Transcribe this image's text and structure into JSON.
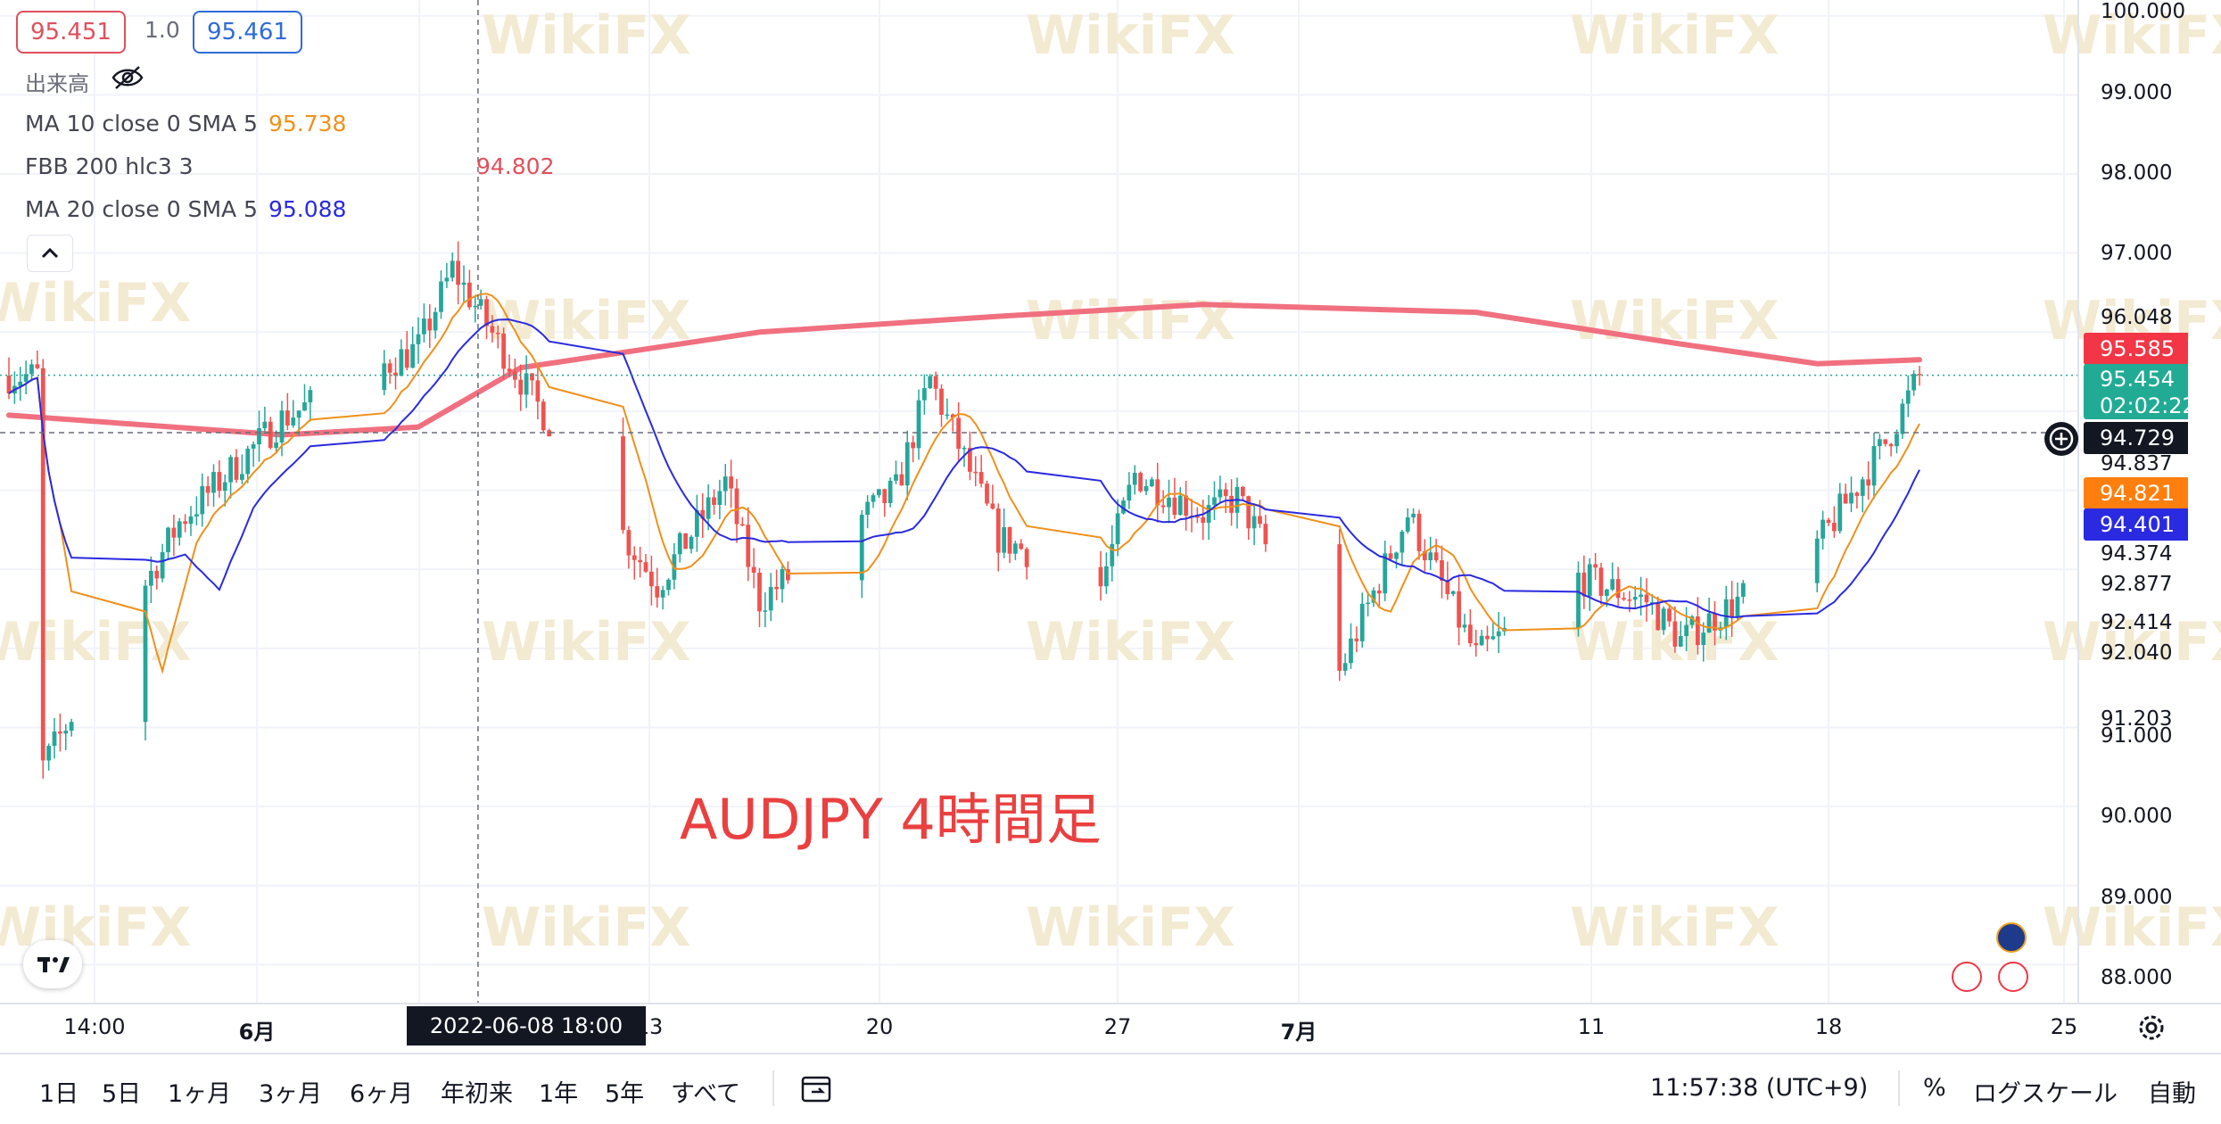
{
  "order_panel": {
    "sell": "95.451",
    "qty": "1.0",
    "buy": "95.461"
  },
  "legend": {
    "volume": "出来高",
    "ma10": {
      "label": "MA 10 close 0 SMA 5",
      "value": "95.738",
      "color": "#f0901a"
    },
    "fbb": {
      "label": "FBB 200 hlc3 3",
      "value": "",
      "color": "#f07080"
    },
    "ma20": {
      "label": "MA 20 close 0 SMA 5",
      "value": "95.088",
      "color": "#2a2ae0"
    }
  },
  "crosshair_value": "94.802",
  "annotation": "AUDJPY 4時間足",
  "y_axis": {
    "ticks": [
      "100.000",
      "99.000",
      "98.000",
      "97.000",
      "96.048",
      "94.837",
      "94.374",
      "92.877",
      "92.414",
      "92.040",
      "91.203",
      "91.000",
      "90.000",
      "89.000",
      "88.000"
    ]
  },
  "price_badges": {
    "fbb": {
      "value": "95.585",
      "color": "#f23645"
    },
    "last": {
      "value": "95.454",
      "countdown": "02:02:22",
      "color": "#22ab94"
    },
    "crosshair": {
      "value": "94.729",
      "color": "#131722"
    },
    "ma10": {
      "value": "94.821",
      "color": "#ff7f0e"
    },
    "ma20": {
      "value": "94.401",
      "color": "#2a2ae0"
    }
  },
  "x_axis": {
    "ticks": [
      {
        "label": "14:00",
        "bold": false
      },
      {
        "label": "6月",
        "bold": true
      },
      {
        "label": "13",
        "bold": false
      },
      {
        "label": "20",
        "bold": false
      },
      {
        "label": "27",
        "bold": false
      },
      {
        "label": "7月",
        "bold": true
      },
      {
        "label": "11",
        "bold": false
      },
      {
        "label": "18",
        "bold": false
      },
      {
        "label": "25",
        "bold": false
      }
    ],
    "crosshair_label": "2022-06-08   18:00"
  },
  "watermark": "WikiFX",
  "toolbar": {
    "timeframes": [
      "1日",
      "5日",
      "1ヶ月",
      "3ヶ月",
      "6ヶ月",
      "年初来",
      "1年",
      "5年",
      "すべて"
    ],
    "time": "11:57:38 (UTC+9)",
    "percent": "%",
    "log": "ログスケール",
    "auto": "自動"
  },
  "chart_data": {
    "type": "candlestick",
    "title": "AUDJPY 4時間足",
    "ylim": [
      87.7,
      100.2
    ],
    "x_range": [
      "2022-05-26",
      "2022-07-21"
    ],
    "crosshair": {
      "time": "2022-06-08 18:00",
      "price": 94.729
    },
    "last_price": 95.454,
    "anchors": [
      {
        "date": "2022-05-27",
        "close": 90.5
      },
      {
        "date": "2022-05-31",
        "close": 93.6
      },
      {
        "date": "2022-06-03",
        "close": 94.9
      },
      {
        "date": "2022-06-07",
        "close": 95.8
      },
      {
        "date": "2022-06-08",
        "close": 96.8
      },
      {
        "date": "2022-06-10",
        "close": 95.4
      },
      {
        "date": "2022-06-14",
        "close": 92.8
      },
      {
        "date": "2022-06-16",
        "close": 94.1
      },
      {
        "date": "2022-06-17",
        "close": 92.6
      },
      {
        "date": "2022-06-21",
        "close": 94.0
      },
      {
        "date": "2022-06-22",
        "close": 95.4
      },
      {
        "date": "2022-06-24",
        "close": 93.4
      },
      {
        "date": "2022-06-27",
        "close": 92.8
      },
      {
        "date": "2022-06-28",
        "close": 94.2
      },
      {
        "date": "2022-06-30",
        "close": 93.7
      },
      {
        "date": "2022-07-01",
        "close": 93.9
      },
      {
        "date": "2022-07-04",
        "close": 91.7
      },
      {
        "date": "2022-07-06",
        "close": 93.7
      },
      {
        "date": "2022-07-08",
        "close": 91.9
      },
      {
        "date": "2022-07-11",
        "close": 92.9
      },
      {
        "date": "2022-07-13",
        "close": 92.6
      },
      {
        "date": "2022-07-14",
        "close": 92.1
      },
      {
        "date": "2022-07-18",
        "close": 93.3
      },
      {
        "date": "2022-07-20",
        "close": 94.6
      },
      {
        "date": "2022-07-21",
        "close": 95.45
      }
    ],
    "fbb_basis": [
      {
        "date": "2022-05-26",
        "value": 94.95
      },
      {
        "date": "2022-06-03",
        "value": 94.7
      },
      {
        "date": "2022-06-07",
        "value": 94.8
      },
      {
        "date": "2022-06-10",
        "value": 95.55
      },
      {
        "date": "2022-06-17",
        "value": 96.0
      },
      {
        "date": "2022-06-24",
        "value": 96.2
      },
      {
        "date": "2022-06-30",
        "value": 96.35
      },
      {
        "date": "2022-07-08",
        "value": 96.25
      },
      {
        "date": "2022-07-14",
        "value": 95.85
      },
      {
        "date": "2022-07-18",
        "value": 95.6
      },
      {
        "date": "2022-07-21",
        "value": 95.65
      }
    ],
    "series": [
      {
        "name": "MA 10 close 0 SMA 5",
        "color": "#f0901a"
      },
      {
        "name": "MA 20 close 0 SMA 5",
        "color": "#2a2ae0"
      },
      {
        "name": "FBB 200 hlc3 3",
        "color": "#f07080"
      }
    ],
    "up_color": "#26a69a",
    "down_color": "#ef5350"
  }
}
